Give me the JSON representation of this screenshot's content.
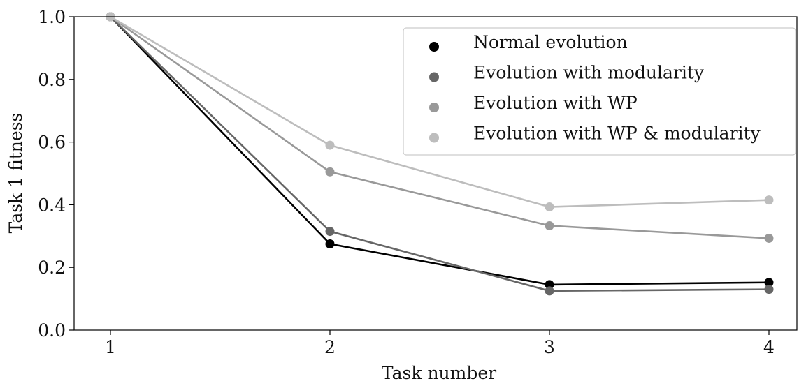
{
  "chart_data": {
    "type": "line",
    "title": "",
    "xlabel": "Task number",
    "ylabel": "Task 1 fitness",
    "x": [
      1,
      2,
      3,
      4
    ],
    "x_tick_labels": [
      "1",
      "2",
      "3",
      "4"
    ],
    "y_tick_labels": [
      "0.0",
      "0.2",
      "0.4",
      "0.6",
      "0.8",
      "1.0"
    ],
    "ylim": [
      0,
      1.0
    ],
    "legend_position": "top-right",
    "grid": false,
    "series": [
      {
        "name": "Normal evolution",
        "color": "#000000",
        "values": [
          1.0,
          0.275,
          0.145,
          0.152
        ]
      },
      {
        "name": "Evolution with modularity",
        "color": "#666666",
        "values": [
          1.0,
          0.315,
          0.125,
          0.13
        ]
      },
      {
        "name": "Evolution with WP",
        "color": "#999999",
        "values": [
          1.0,
          0.505,
          0.333,
          0.293
        ]
      },
      {
        "name": "Evolution with WP & modularity",
        "color": "#bdbdbd",
        "values": [
          1.0,
          0.59,
          0.393,
          0.415
        ]
      }
    ]
  }
}
